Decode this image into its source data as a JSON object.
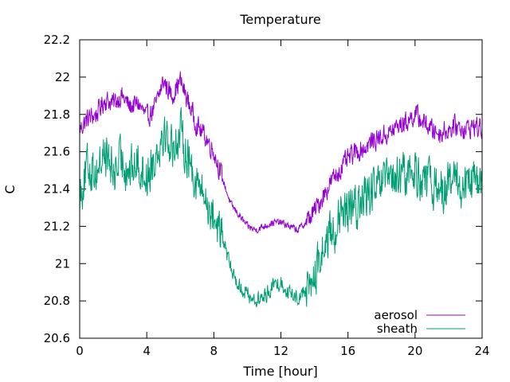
{
  "chart_data": {
    "type": "line",
    "title": "Temperature",
    "xlabel": "Time [hour]",
    "ylabel": "C",
    "xlim": [
      0,
      24
    ],
    "ylim": [
      20.6,
      22.2
    ],
    "xticks": [
      "0",
      "4",
      "8",
      "12",
      "16",
      "20",
      "24"
    ],
    "yticks": [
      "20.6",
      "20.8",
      "21",
      "21.2",
      "21.4",
      "21.6",
      "21.8",
      "22",
      "22.2"
    ],
    "grid": false,
    "legend_position": "bottom-right",
    "series": [
      {
        "name": "aerosol",
        "color": "#9400d3",
        "x": [
          0,
          0.5,
          1,
          1.5,
          2,
          2.5,
          3,
          3.5,
          4,
          4.5,
          5,
          5.5,
          6,
          6.5,
          7,
          7.5,
          8,
          8.5,
          9,
          9.5,
          10,
          10.5,
          11,
          11.5,
          12,
          12.5,
          13,
          13.5,
          14,
          14.5,
          15,
          15.5,
          16,
          16.5,
          17,
          17.5,
          18,
          18.5,
          19,
          19.5,
          20,
          20.5,
          21,
          21.5,
          22,
          22.5,
          23,
          23.5,
          24
        ],
        "y": [
          21.72,
          21.78,
          21.8,
          21.88,
          21.86,
          21.9,
          21.84,
          21.86,
          21.78,
          21.84,
          21.98,
          21.9,
          21.98,
          21.86,
          21.74,
          21.68,
          21.6,
          21.46,
          21.32,
          21.26,
          21.2,
          21.18,
          21.2,
          21.22,
          21.22,
          21.2,
          21.18,
          21.22,
          21.28,
          21.36,
          21.44,
          21.5,
          21.56,
          21.6,
          21.62,
          21.66,
          21.68,
          21.7,
          21.74,
          21.76,
          21.8,
          21.76,
          21.72,
          21.7,
          21.72,
          21.74,
          21.72,
          21.74,
          21.72
        ]
      },
      {
        "name": "sheath",
        "color": "#009e73",
        "x": [
          0,
          0.5,
          1,
          1.5,
          2,
          2.5,
          3,
          3.5,
          4,
          4.5,
          5,
          5.5,
          6,
          6.5,
          7,
          7.5,
          8,
          8.5,
          9,
          9.5,
          10,
          10.5,
          11,
          11.5,
          12,
          12.5,
          13,
          13.5,
          14,
          14.5,
          15,
          15.5,
          16,
          16.5,
          17,
          17.5,
          18,
          18.5,
          19,
          19.5,
          20,
          20.5,
          21,
          21.5,
          22,
          22.5,
          23,
          23.5,
          24
        ],
        "y": [
          21.38,
          21.52,
          21.5,
          21.6,
          21.48,
          21.56,
          21.5,
          21.54,
          21.46,
          21.58,
          21.72,
          21.62,
          21.7,
          21.56,
          21.44,
          21.34,
          21.26,
          21.14,
          20.98,
          20.88,
          20.84,
          20.8,
          20.82,
          20.88,
          20.9,
          20.84,
          20.82,
          20.86,
          20.92,
          21.08,
          21.16,
          21.22,
          21.28,
          21.3,
          21.36,
          21.38,
          21.42,
          21.44,
          21.46,
          21.48,
          21.5,
          21.44,
          21.42,
          21.4,
          21.42,
          21.44,
          21.4,
          21.44,
          21.42
        ]
      }
    ]
  }
}
